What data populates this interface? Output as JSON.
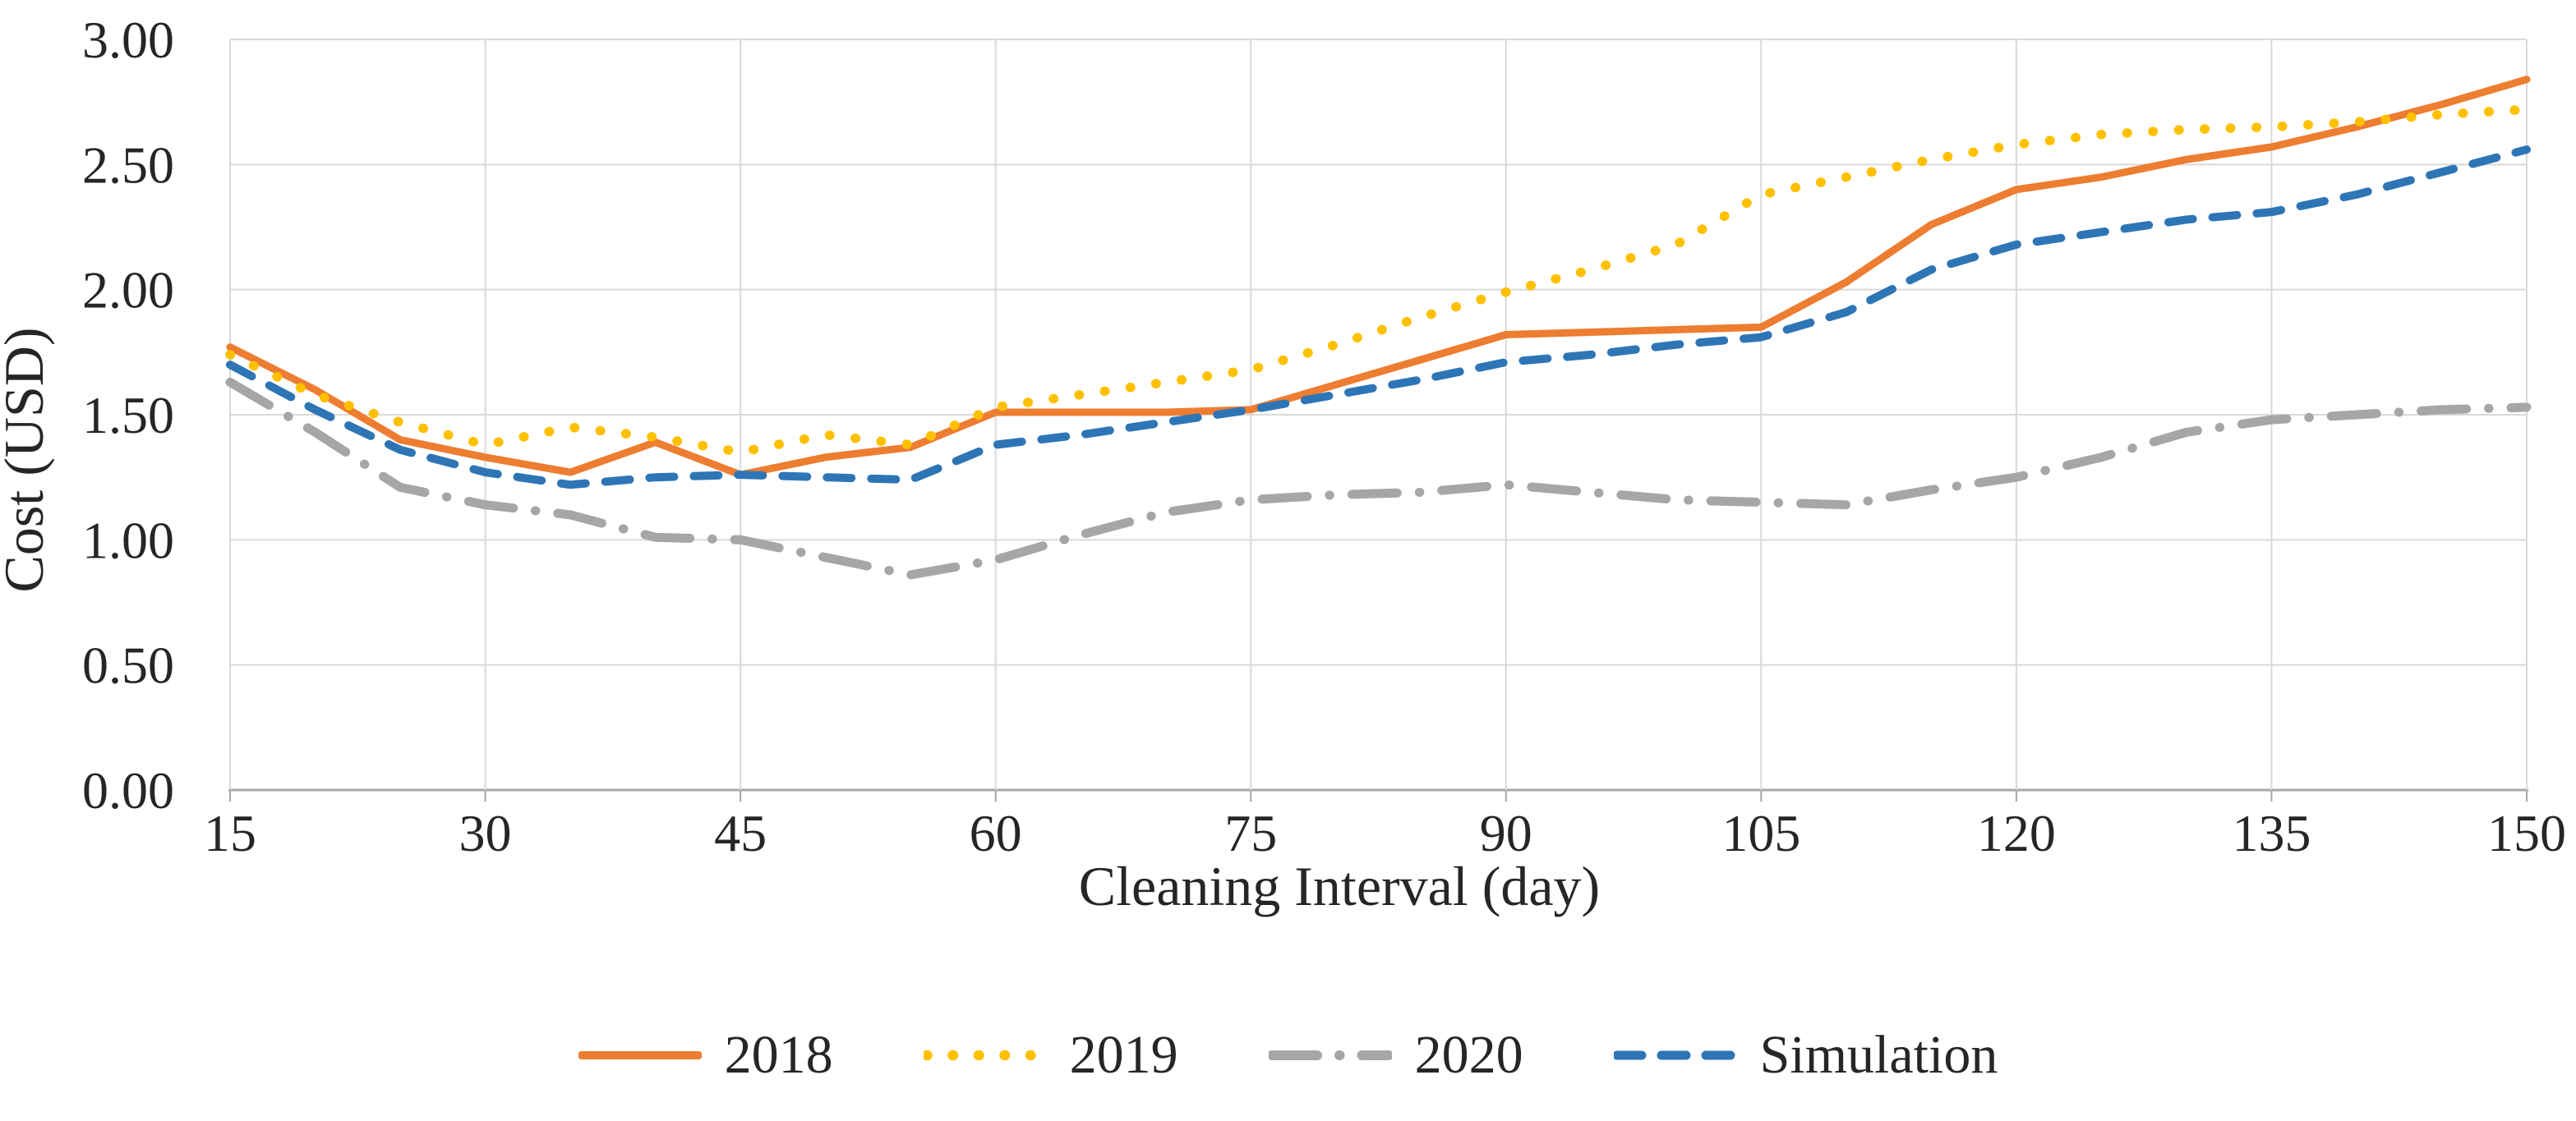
{
  "chart_data": {
    "type": "line",
    "title": "",
    "xlabel": "Cleaning Interval (day)",
    "ylabel": "Cost (USD)",
    "xlim": [
      15,
      150
    ],
    "ylim": [
      0,
      3
    ],
    "grid": true,
    "legend_position": "bottom",
    "x_tick_days": [
      15,
      30,
      45,
      60,
      75,
      90,
      105,
      120,
      135,
      150
    ],
    "x_tick_labels": [
      "15",
      "30",
      "45",
      "60",
      "75",
      "90",
      "105",
      "120",
      "135",
      "150"
    ],
    "y_tick_values": [
      0,
      0.5,
      1,
      1.5,
      2,
      2.5,
      3
    ],
    "y_tick_labels": [
      "0.00",
      "0.50",
      "1.00",
      "1.50",
      "2.00",
      "2.50",
      "3.00"
    ],
    "x": [
      15,
      20,
      25,
      30,
      35,
      40,
      45,
      50,
      55,
      60,
      65,
      70,
      75,
      80,
      85,
      90,
      95,
      100,
      105,
      110,
      115,
      120,
      125,
      130,
      135,
      140,
      145,
      150
    ],
    "series": [
      {
        "name": "2018",
        "color": "#ED7D31",
        "style": "solid",
        "values": [
          1.77,
          1.6,
          1.4,
          1.33,
          1.27,
          1.39,
          1.26,
          1.33,
          1.37,
          1.51,
          1.51,
          1.51,
          1.52,
          1.62,
          1.72,
          1.82,
          1.83,
          1.84,
          1.85,
          2.03,
          2.26,
          2.4,
          2.45,
          2.52,
          2.57,
          2.65,
          2.74,
          2.84
        ]
      },
      {
        "name": "2019",
        "color": "#FFC000",
        "style": "dotted",
        "values": [
          1.74,
          1.58,
          1.47,
          1.38,
          1.45,
          1.41,
          1.35,
          1.42,
          1.38,
          1.53,
          1.58,
          1.63,
          1.68,
          1.78,
          1.89,
          1.99,
          2.08,
          2.18,
          2.38,
          2.45,
          2.52,
          2.58,
          2.62,
          2.64,
          2.65,
          2.67,
          2.7,
          2.72
        ]
      },
      {
        "name": "2020",
        "color": "#A6A6A6",
        "style": "dashdot",
        "values": [
          1.63,
          1.43,
          1.21,
          1.14,
          1.1,
          1.01,
          1.0,
          0.93,
          0.86,
          0.92,
          1.02,
          1.11,
          1.16,
          1.18,
          1.19,
          1.22,
          1.19,
          1.16,
          1.15,
          1.14,
          1.2,
          1.25,
          1.33,
          1.43,
          1.48,
          1.5,
          1.52,
          1.53
        ]
      },
      {
        "name": "Simulation",
        "color": "#2E75B6",
        "style": "dashed",
        "values": [
          1.7,
          1.52,
          1.36,
          1.27,
          1.22,
          1.25,
          1.26,
          1.25,
          1.24,
          1.38,
          1.42,
          1.47,
          1.52,
          1.58,
          1.64,
          1.71,
          1.74,
          1.78,
          1.81,
          1.91,
          2.08,
          2.18,
          2.23,
          2.28,
          2.31,
          2.38,
          2.47,
          2.56
        ]
      }
    ],
    "colors": {
      "gridline": "#D9D9D9",
      "axis_line": "#A6A6A6",
      "tick_text": "#262626"
    }
  }
}
